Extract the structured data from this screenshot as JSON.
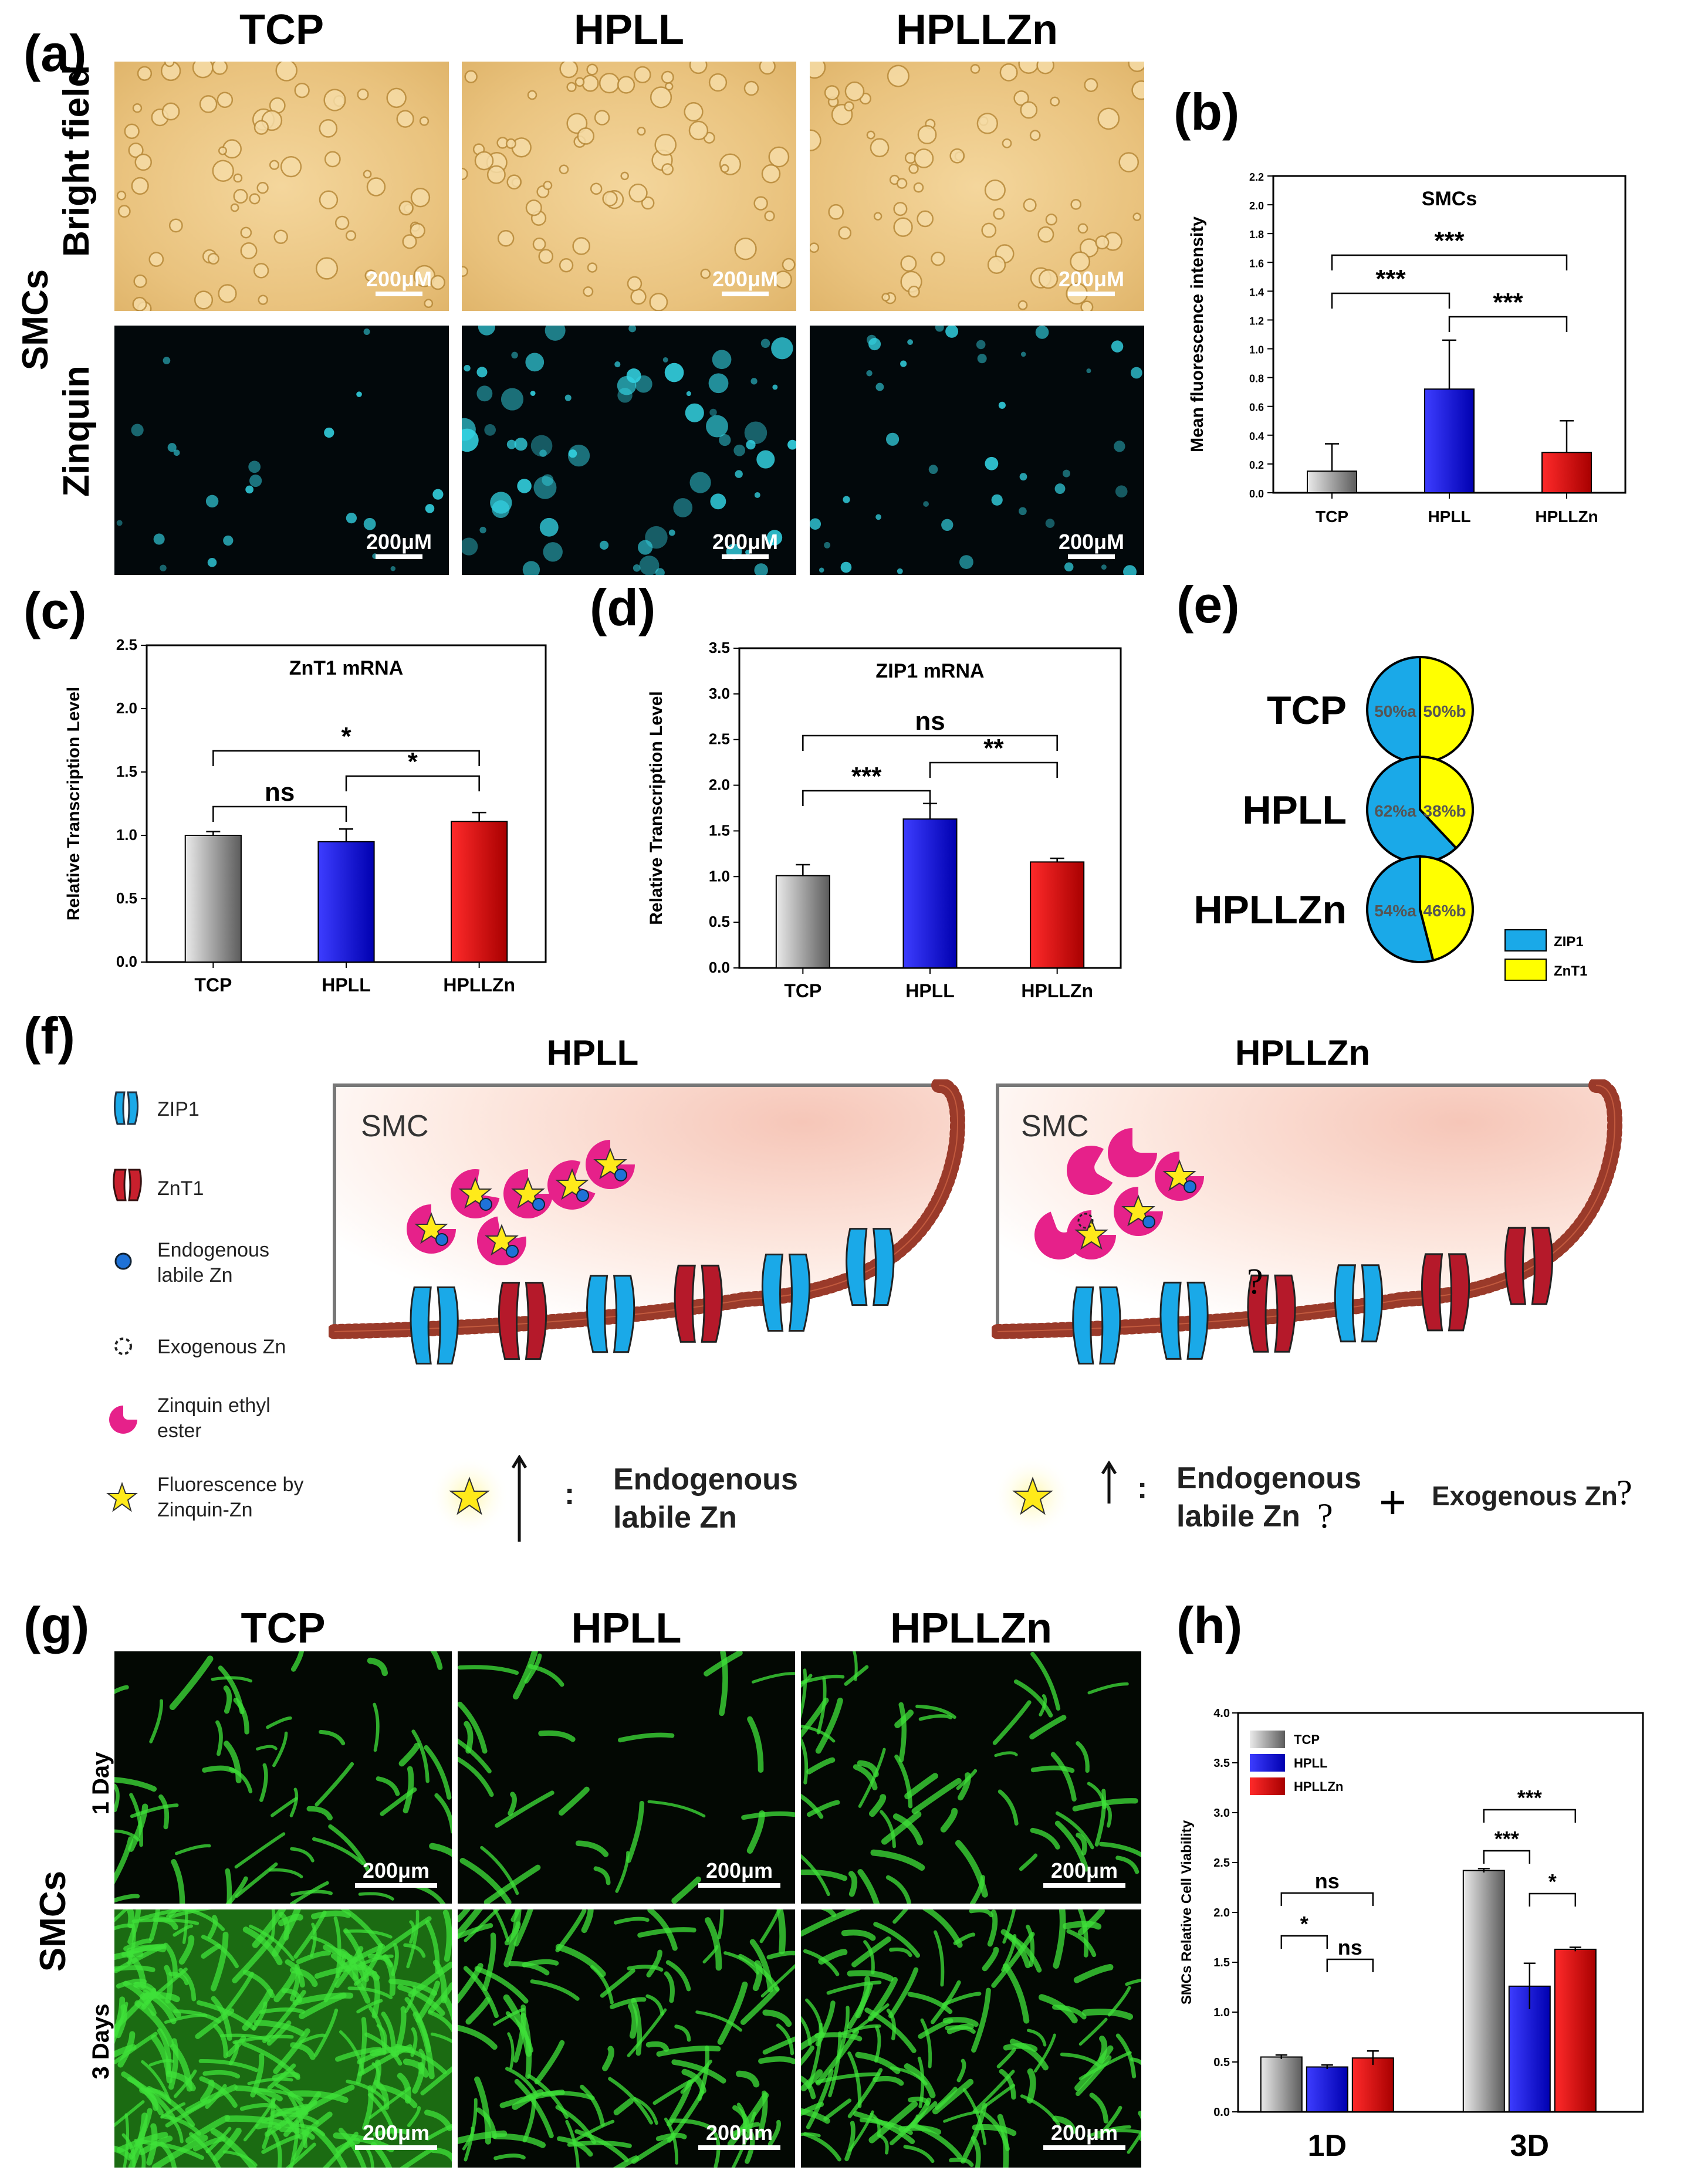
{
  "panels": {
    "a": {
      "label": "(a)",
      "columns": [
        "TCP",
        "HPLL",
        "HPLLZn"
      ],
      "side_label": "SMCs",
      "rows": [
        "Bright field",
        "Zinquin"
      ],
      "scale": "200μM"
    },
    "b": {
      "label": "(b)"
    },
    "c": {
      "label": "(c)"
    },
    "d": {
      "label": "(d)"
    },
    "e": {
      "label": "(e)",
      "groups": [
        "TCP",
        "HPLL",
        "HPLLZn"
      ],
      "legend": [
        "ZIP1",
        "ZnT1"
      ]
    },
    "f": {
      "label": "(f)",
      "titles": [
        "HPLL",
        "HPLLZn"
      ],
      "cell_label": "SMC",
      "legend": [
        {
          "icon": "zip1-transporter-icon",
          "text": "ZIP1"
        },
        {
          "icon": "znt1-transporter-icon",
          "text": "ZnT1"
        },
        {
          "icon": "endogenous-zn-icon",
          "text": "Endogenous labile Zn"
        },
        {
          "icon": "exogenous-zn-icon",
          "text": "Exogenous Zn"
        },
        {
          "icon": "zinquin-icon",
          "text": "Zinquin ethyl ester"
        },
        {
          "icon": "fluorescence-star-icon",
          "text": "Fluorescence by Zinquin-Zn"
        }
      ],
      "question_mark": "?",
      "hpll_caption": [
        "Endogenous",
        "labile Zn"
      ],
      "hpllzn_caption": [
        "Endogenous",
        "labile Zn"
      ],
      "hpllzn_extra": "Exogenous Zn",
      "qmark": "?",
      "plus": "+",
      "colon": ":"
    },
    "g": {
      "label": "(g)",
      "columns": [
        "TCP",
        "HPLL",
        "HPLLZn"
      ],
      "side_label": "SMCs",
      "rows": [
        "1 Day",
        "3 Days"
      ],
      "scale": "200μm"
    },
    "h": {
      "label": "(h)"
    }
  },
  "chart_data": [
    {
      "id": "b",
      "type": "bar",
      "title": "SMCs",
      "ylabel": "Mean fluorescence intensity",
      "categories": [
        "TCP",
        "HPLL",
        "HPLLZn"
      ],
      "values": [
        0.15,
        0.72,
        0.28
      ],
      "errors": [
        0.19,
        0.34,
        0.22
      ],
      "ylim": [
        0,
        2.2
      ],
      "yticks": [
        "0.0",
        "0.2",
        "0.4",
        "0.6",
        "0.8",
        "1.0",
        "1.2",
        "1.4",
        "1.6",
        "1.8",
        "2.0",
        "2.2"
      ],
      "colors": [
        "#9a9a9a",
        "#1a1ad6",
        "#d81a1a"
      ],
      "significance": [
        {
          "from": 0,
          "to": 1,
          "text": "***"
        },
        {
          "from": 0,
          "to": 2,
          "text": "***"
        },
        {
          "from": 1,
          "to": 2,
          "text": "***"
        }
      ]
    },
    {
      "id": "c",
      "type": "bar",
      "title": "ZnT1 mRNA",
      "ylabel": "Relative Transcription Level",
      "categories": [
        "TCP",
        "HPLL",
        "HPLLZn"
      ],
      "values": [
        1.0,
        0.95,
        1.11
      ],
      "errors": [
        0.03,
        0.1,
        0.07
      ],
      "ylim": [
        0,
        2.5
      ],
      "yticks": [
        "0.0",
        "0.5",
        "1.0",
        "1.5",
        "2.0",
        "2.5"
      ],
      "colors": [
        "#9a9a9a",
        "#1a1ad6",
        "#d81a1a"
      ],
      "significance": [
        {
          "from": 0,
          "to": 1,
          "text": "ns"
        },
        {
          "from": 0,
          "to": 2,
          "text": "*"
        },
        {
          "from": 1,
          "to": 2,
          "text": "*"
        }
      ]
    },
    {
      "id": "d",
      "type": "bar",
      "title": "ZIP1 mRNA",
      "ylabel": "Relative Transcription Level",
      "categories": [
        "TCP",
        "HPLL",
        "HPLLZn"
      ],
      "values": [
        1.01,
        1.63,
        1.16
      ],
      "errors": [
        0.12,
        0.17,
        0.04
      ],
      "ylim": [
        0,
        3.5
      ],
      "yticks": [
        "0.0",
        "0.5",
        "1.0",
        "1.5",
        "2.0",
        "2.5",
        "3.0",
        "3.5"
      ],
      "colors": [
        "#9a9a9a",
        "#1a1ad6",
        "#d81a1a"
      ],
      "significance": [
        {
          "from": 0,
          "to": 1,
          "text": "***"
        },
        {
          "from": 0,
          "to": 2,
          "text": "ns"
        },
        {
          "from": 1,
          "to": 2,
          "text": "**"
        }
      ]
    },
    {
      "id": "e",
      "type": "pie",
      "series": [
        {
          "name": "TCP",
          "values": [
            50,
            50
          ],
          "labels": [
            "50%a",
            "50%b"
          ]
        },
        {
          "name": "HPLL",
          "values": [
            62,
            38
          ],
          "labels": [
            "62%a",
            "38%b"
          ]
        },
        {
          "name": "HPLLZn",
          "values": [
            54,
            46
          ],
          "labels": [
            "54%a",
            "46%b"
          ]
        }
      ],
      "categories": [
        "ZIP1",
        "ZnT1"
      ],
      "colors": [
        "#1aa9e8",
        "#ffff00"
      ]
    },
    {
      "id": "h",
      "type": "bar",
      "ylabel": "SMCs Relative Cell Viability",
      "categories": [
        "1D",
        "3D"
      ],
      "series": [
        {
          "name": "TCP",
          "values": [
            0.55,
            2.42
          ],
          "errors": [
            0.02,
            0.02
          ],
          "color": "#9a9a9a"
        },
        {
          "name": "HPLL",
          "values": [
            0.45,
            1.26
          ],
          "errors": [
            0.02,
            0.23
          ],
          "color": "#1a1ad6"
        },
        {
          "name": "HPLLZn",
          "values": [
            0.54,
            1.63
          ],
          "errors": [
            0.07,
            0.02
          ],
          "color": "#d81a1a"
        }
      ],
      "ylim": [
        0,
        4.0
      ],
      "yticks": [
        "0.0",
        "0.5",
        "1.0",
        "1.5",
        "2.0",
        "2.5",
        "3.0",
        "3.5",
        "4.0"
      ],
      "legend_position": "top-left",
      "significance": [
        {
          "group": 0,
          "from": 0,
          "to": 1,
          "text": "*"
        },
        {
          "group": 0,
          "from": 0,
          "to": 2,
          "text": "ns"
        },
        {
          "group": 0,
          "from": 1,
          "to": 2,
          "text": "ns"
        },
        {
          "group": 1,
          "from": 0,
          "to": 1,
          "text": "***"
        },
        {
          "group": 1,
          "from": 0,
          "to": 2,
          "text": "***"
        },
        {
          "group": 1,
          "from": 1,
          "to": 2,
          "text": "*"
        }
      ]
    }
  ]
}
